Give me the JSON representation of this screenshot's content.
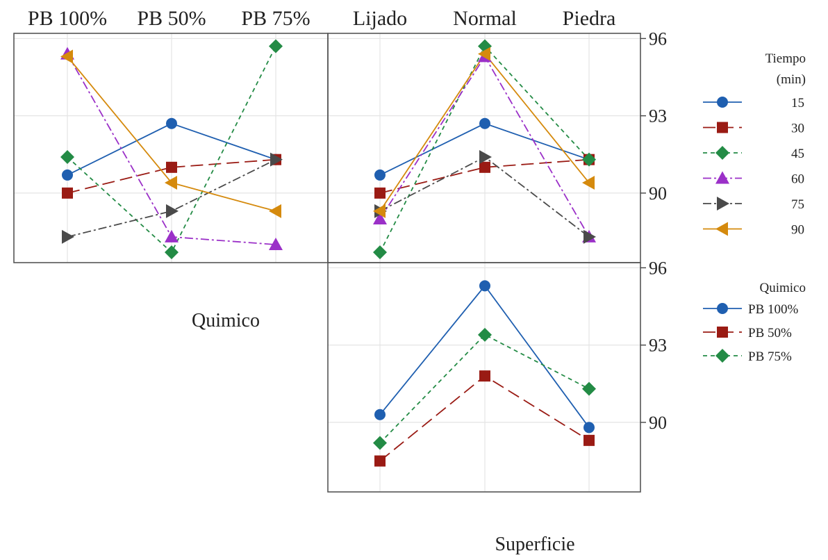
{
  "colors": {
    "s15": "#1f5fb0",
    "s30": "#9a1b14",
    "s45": "#238b45",
    "s60": "#9b30c8",
    "s75": "#4a4a4a",
    "s90": "#d58a0d"
  },
  "chart_data": [
    {
      "id": "quimico-by-tiempo",
      "type": "line",
      "categories": [
        "PB 100%",
        "PB 50%",
        "PB 75%"
      ],
      "xlabel": "Quimico",
      "ylim": [
        87.3,
        96.2
      ],
      "series": [
        {
          "name": "15",
          "values": [
            90.7,
            92.7,
            91.3
          ]
        },
        {
          "name": "30",
          "values": [
            90.0,
            91.0,
            91.3
          ]
        },
        {
          "name": "45",
          "values": [
            91.4,
            87.7,
            95.7
          ]
        },
        {
          "name": "60",
          "values": [
            95.4,
            88.3,
            88.0
          ]
        },
        {
          "name": "75",
          "values": [
            88.3,
            89.3,
            91.3
          ]
        },
        {
          "name": "90",
          "values": [
            95.3,
            90.4,
            89.3
          ]
        }
      ]
    },
    {
      "id": "superficie-by-tiempo",
      "type": "line",
      "categories": [
        "Lijado",
        "Normal",
        "Piedra"
      ],
      "yticks": [
        90,
        93,
        96
      ],
      "ylim": [
        87.3,
        96.2
      ],
      "legend_title": [
        "Tiempo",
        "(min)"
      ],
      "series": [
        {
          "name": "15",
          "values": [
            90.7,
            92.7,
            91.3
          ]
        },
        {
          "name": "30",
          "values": [
            90.0,
            91.0,
            91.3
          ]
        },
        {
          "name": "45",
          "values": [
            87.7,
            95.7,
            91.3
          ]
        },
        {
          "name": "60",
          "values": [
            89.0,
            95.3,
            88.3
          ]
        },
        {
          "name": "75",
          "values": [
            89.3,
            91.4,
            88.3
          ]
        },
        {
          "name": "90",
          "values": [
            89.3,
            95.4,
            90.4
          ]
        }
      ]
    },
    {
      "id": "superficie-by-quimico",
      "type": "line",
      "categories": [
        "Lijado",
        "Normal",
        "Piedra"
      ],
      "xlabel": "Superficie",
      "yticks": [
        90,
        93,
        96
      ],
      "ylim": [
        87.3,
        96.2
      ],
      "legend_title": [
        "Quimico"
      ],
      "series": [
        {
          "name": "PB 100%",
          "values": [
            90.3,
            95.3,
            89.8
          ]
        },
        {
          "name": "PB 50%",
          "values": [
            88.5,
            91.8,
            89.3
          ]
        },
        {
          "name": "PB 75%",
          "values": [
            89.2,
            93.4,
            91.3
          ]
        }
      ]
    }
  ]
}
